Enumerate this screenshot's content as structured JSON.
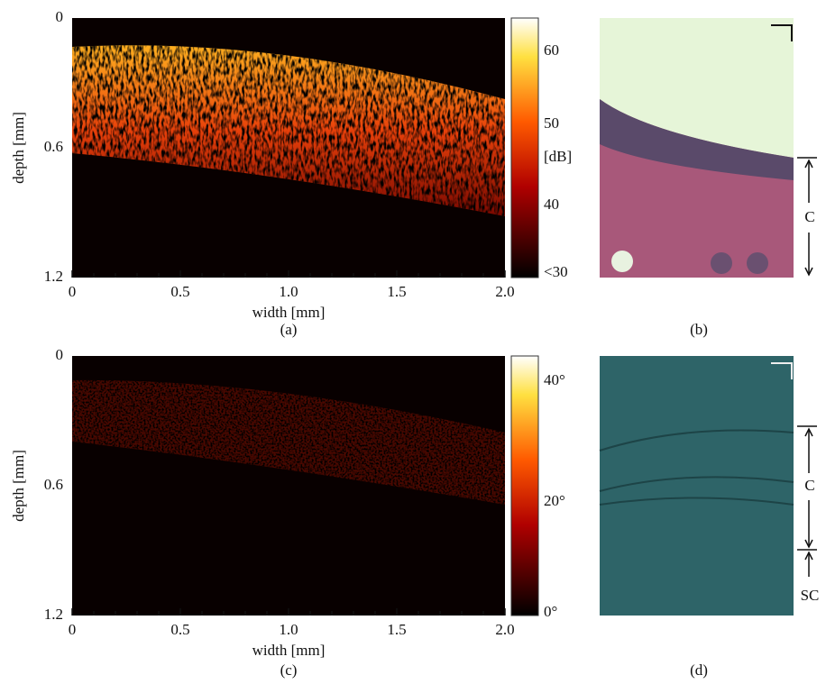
{
  "panels": [
    {
      "label": "(a)",
      "x_label": "width [mm]",
      "y_label": "depth [mm]",
      "x_ticks": [
        "0",
        "0.5",
        "1.0",
        "1.5",
        "2.0"
      ],
      "y_ticks": [
        "0",
        "0.6",
        "1.2"
      ],
      "colorbar_ticks": [
        "60",
        "50",
        "40",
        "<30"
      ],
      "colorbar_unit": "[dB]"
    },
    {
      "label": "(b)",
      "annotations": [
        "C"
      ]
    },
    {
      "label": "(c)",
      "x_label": "width [mm]",
      "y_label": "depth [mm]",
      "x_ticks": [
        "0",
        "0.5",
        "1.0",
        "1.5",
        "2.0"
      ],
      "y_ticks": [
        "0",
        "0.6",
        "1.2"
      ],
      "colorbar_ticks": [
        "40°",
        "20°",
        "0°"
      ]
    },
    {
      "label": "(d)",
      "annotations": [
        "C",
        "SC"
      ]
    }
  ]
}
